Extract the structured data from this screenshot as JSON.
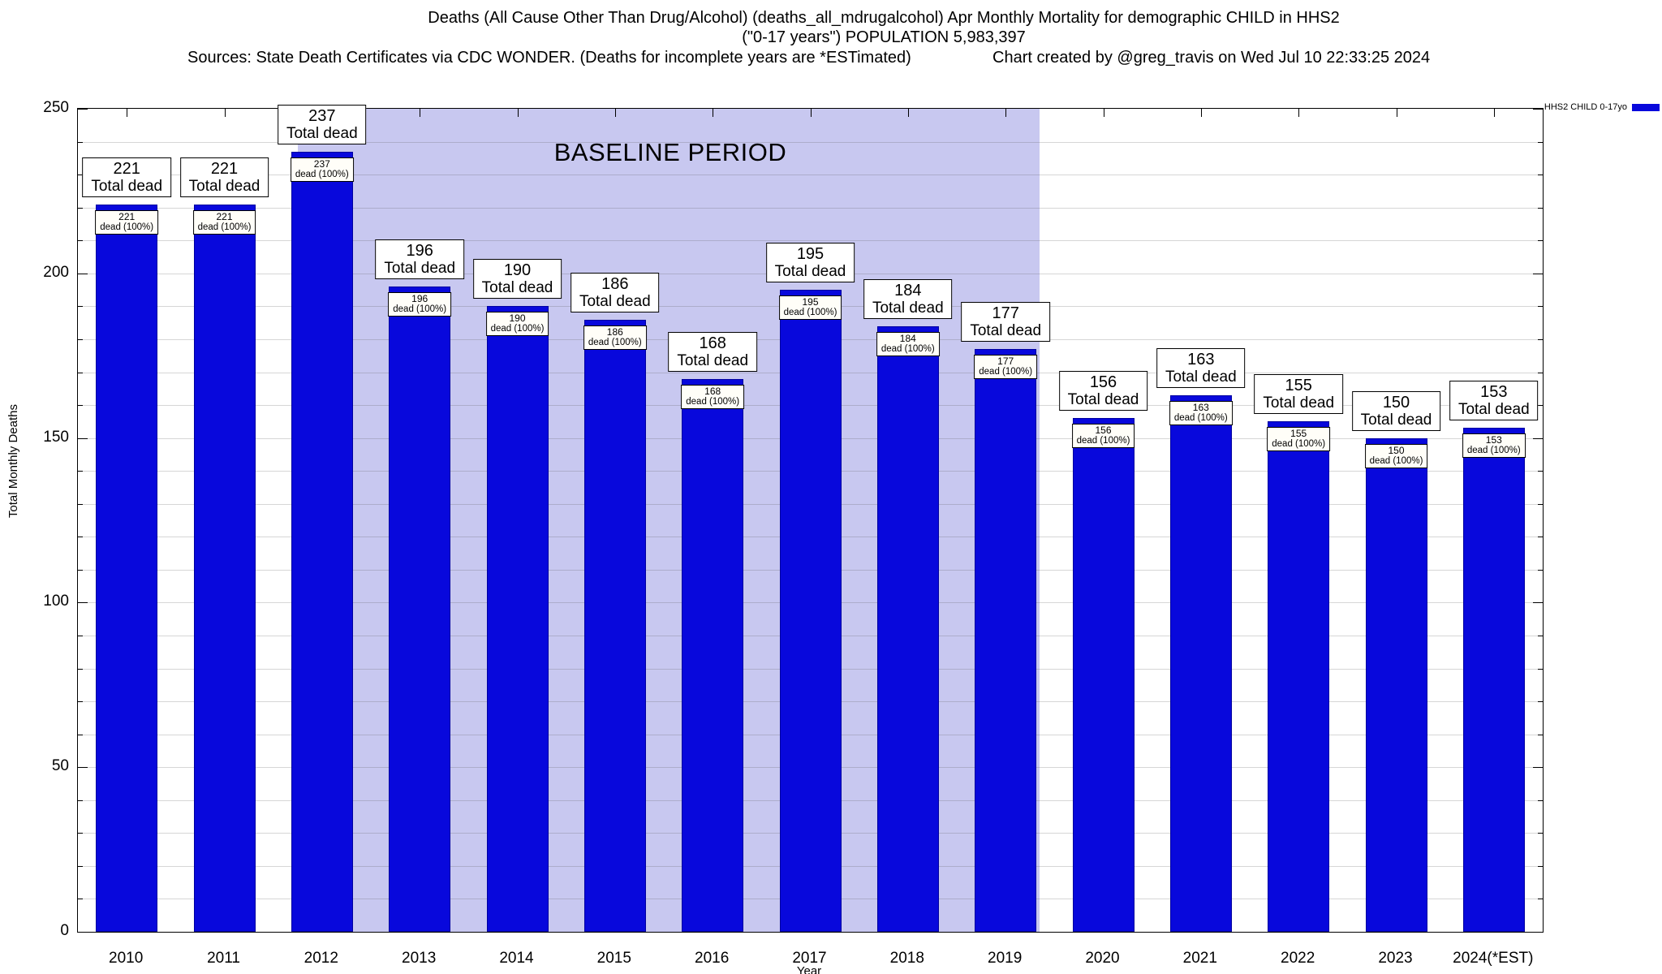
{
  "title": {
    "line1": "Deaths (All Cause Other Than Drug/Alcohol) (deaths_all_mdrugalcohol) Apr Monthly Mortality for demographic CHILD in HHS2",
    "line2": "(\"0-17 years\") POPULATION 5,983,397",
    "sources": "Sources: State Death Certificates via CDC WONDER. (Deaths for incomplete years are *ESTimated)",
    "credit": "Chart created by @greg_travis on Wed Jul 10 22:33:25 2024"
  },
  "legend": {
    "label": "HHS2 CHILD 0-17yo",
    "swatch_color": "#0808dc"
  },
  "chart_data": {
    "type": "bar",
    "categories": [
      "2010",
      "2011",
      "2012",
      "2013",
      "2014",
      "2015",
      "2016",
      "2017",
      "2018",
      "2019",
      "2020",
      "2021",
      "2022",
      "2023",
      "2024(*EST)"
    ],
    "values": [
      221,
      221,
      237,
      196,
      190,
      186,
      168,
      195,
      184,
      177,
      156,
      163,
      155,
      150,
      153
    ],
    "bar_top_label_line2": "Total dead",
    "bar_inner_label_line2": "dead (100%)",
    "xlabel": "Year",
    "ylabel": "Total Monthly Deaths",
    "ylim": [
      0,
      250
    ],
    "yticks": [
      0,
      50,
      100,
      150,
      200,
      250
    ],
    "grid_step": 10,
    "grid": true,
    "legend_position": "top-right",
    "bar_color": "#0808dc",
    "baseline": {
      "label": "BASELINE PERIOD",
      "start_slot": 2.25,
      "end_slot": 9.85,
      "color": "#c8c8f0"
    }
  }
}
